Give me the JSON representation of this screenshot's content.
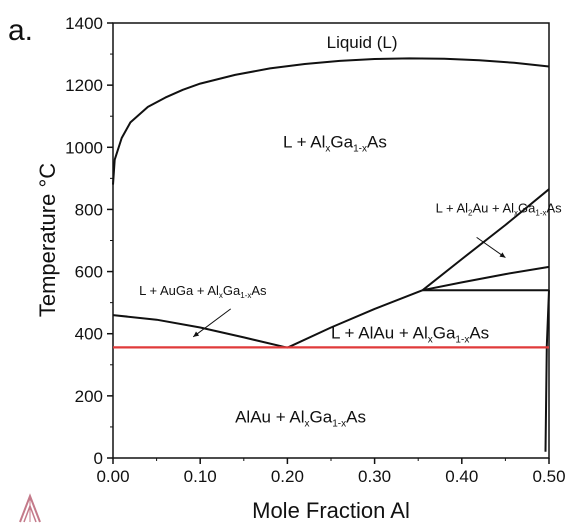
{
  "panel_label": "a.",
  "chart_data": {
    "type": "line",
    "xlabel": "Mole Fraction Al",
    "ylabel": "Temperature °C",
    "xlim": [
      0,
      0.5
    ],
    "ylim": [
      0,
      1400
    ],
    "x_ticks": [
      "0.00",
      "0.10",
      "0.20",
      "0.30",
      "0.40",
      "0.50"
    ],
    "y_ticks": [
      "0",
      "200",
      "400",
      "600",
      "800",
      "1000",
      "1200",
      "1400"
    ],
    "series": [
      {
        "color": "#111111",
        "x": [
          0,
          0.002,
          0.01,
          0.02,
          0.04,
          0.06,
          0.08,
          0.1,
          0.14,
          0.18,
          0.22,
          0.26,
          0.3,
          0.34,
          0.38,
          0.42,
          0.46,
          0.5
        ],
        "y": [
          880,
          960,
          1030,
          1080,
          1130,
          1160,
          1185,
          1205,
          1233,
          1254,
          1268,
          1278,
          1284,
          1286,
          1285,
          1280,
          1272,
          1260
        ]
      },
      {
        "color": "#111111",
        "x": [
          0,
          0.05,
          0.1,
          0.15,
          0.2
        ],
        "y": [
          460,
          445,
          420,
          388,
          355
        ]
      },
      {
        "color": "#111111",
        "x": [
          0.2,
          0.25,
          0.3,
          0.355
        ],
        "y": [
          355,
          420,
          480,
          540
        ]
      },
      {
        "color": "#111111",
        "x": [
          0.355,
          0.4,
          0.45,
          0.5
        ],
        "y": [
          540,
          640,
          750,
          865
        ]
      },
      {
        "color": "#111111",
        "x": [
          0.355,
          0.4,
          0.45,
          0.5
        ],
        "y": [
          540,
          565,
          592,
          615
        ]
      },
      {
        "color": "#111111",
        "x": [
          0.355,
          0.5
        ],
        "y": [
          540,
          540
        ]
      },
      {
        "color": "#111111",
        "x": [
          0.496,
          0.4975,
          0.5
        ],
        "y": [
          20,
          360,
          540
        ]
      },
      {
        "color": "#e03a3a",
        "x": [
          0,
          0.5
        ],
        "y": [
          356,
          356
        ]
      }
    ],
    "annotations": [
      {
        "text": "Liquid (L)",
        "x": 0.245,
        "y": 1320
      },
      {
        "text": "L + Al",
        "sub1": "x",
        "mid": "Ga",
        "sub2": "1-x",
        "tail": "As",
        "x": 0.195,
        "y": 1000,
        "size": 17
      },
      {
        "text": "L + Al",
        "sub1": "2",
        "mid": "Au + Al",
        "sub2": "x",
        "tail2": "Ga",
        "sub3": "1-x",
        "tail": "As",
        "x": 0.37,
        "y": 790,
        "size": 13
      },
      {
        "text": "L + AuGa + Al",
        "sub1": "x",
        "mid": "Ga",
        "sub2": "1-x",
        "tail": "As",
        "x": 0.03,
        "y": 525,
        "size": 13
      },
      {
        "text": "L + AlAu + Al",
        "sub1": "x",
        "mid": "Ga",
        "sub2": "1-x",
        "tail": "As",
        "x": 0.25,
        "y": 385,
        "size": 17
      },
      {
        "text": "AlAu + Al",
        "sub1": "x",
        "mid": "Ga",
        "sub2": "1-x",
        "tail": "As",
        "x": 0.14,
        "y": 115,
        "size": 17
      }
    ],
    "arrows": [
      {
        "from": [
          0.135,
          480
        ],
        "to": [
          0.092,
          390
        ]
      },
      {
        "from": [
          0.417,
          710
        ],
        "to": [
          0.45,
          645
        ]
      }
    ]
  }
}
